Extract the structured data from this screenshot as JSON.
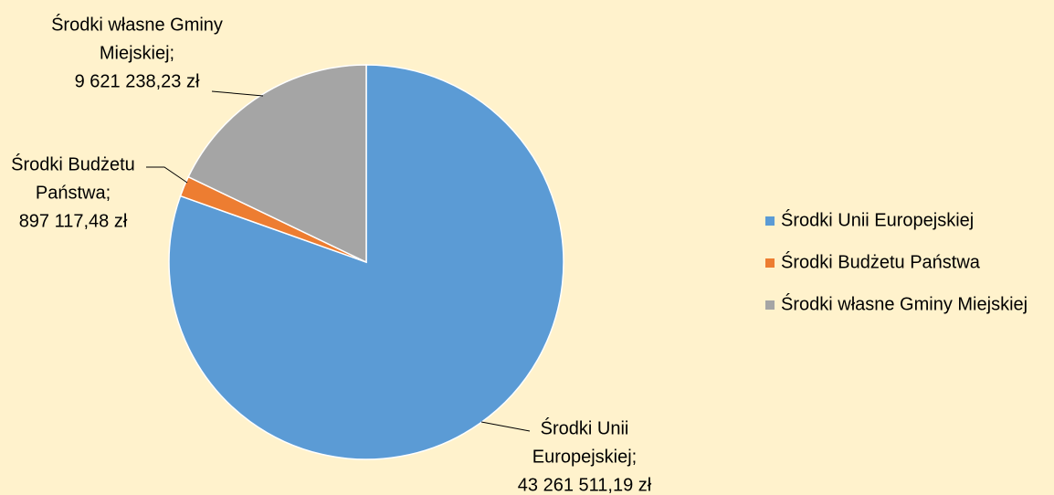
{
  "chart_data": {
    "type": "pie",
    "categories": [
      "Środki Unii Europejskiej",
      "Środki Budżetu Państwa",
      "Środki własne Gminy Miejskiej"
    ],
    "values": [
      43261511.19,
      897117.48,
      9621238.23
    ],
    "value_labels": [
      "43 261 511,19 zł",
      "897 117,48 zł",
      "9 621 238,23 zł"
    ],
    "label_lines": [
      [
        "Środki Unii",
        "Europejskiej;"
      ],
      [
        "Środki Budżetu",
        "Państwa;"
      ],
      [
        "Środki własne Gminy",
        "Miejskiej;"
      ]
    ],
    "colors": [
      "#5b9bd5",
      "#ed7d31",
      "#a5a5a5"
    ],
    "legend": "right"
  }
}
